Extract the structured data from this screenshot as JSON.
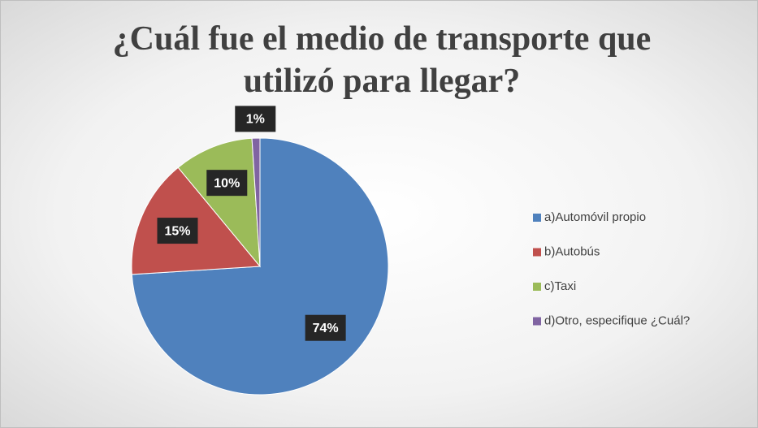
{
  "chart_data": {
    "type": "pie",
    "title": "¿Cuál fue el medio de transporte que utilizó para llegar?",
    "categories": [
      "a)Automóvil propio",
      "b)Autobús",
      "c)Taxi",
      "d)Otro, especifique ¿Cuál?"
    ],
    "values": [
      74,
      15,
      10,
      1
    ],
    "value_labels": [
      "74%",
      "15%",
      "10%",
      "1%"
    ],
    "colors": [
      "#4f81bd",
      "#c0504d",
      "#9bbb59",
      "#8064a2"
    ],
    "legend": "right"
  }
}
